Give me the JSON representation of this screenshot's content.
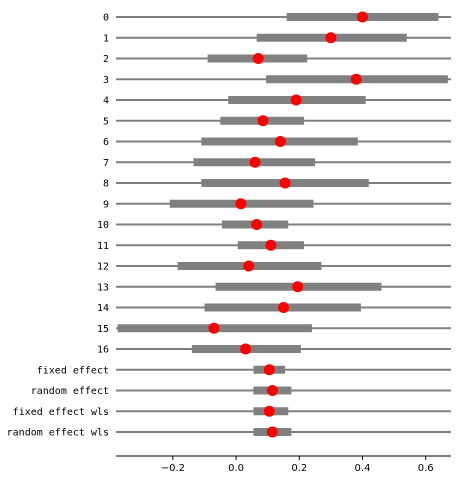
{
  "chart_data": {
    "type": "forest",
    "title": "",
    "xlabel": "",
    "ylabel": "",
    "xlim": [
      -0.38,
      0.68
    ],
    "xticks": [
      -0.2,
      0.0,
      0.2,
      0.4,
      0.6
    ],
    "xtick_labels": [
      "−0.2",
      "0.0",
      "0.2",
      "0.4",
      "0.6"
    ],
    "grid": false,
    "rows": [
      {
        "label": "0",
        "estimate": 0.4,
        "ci_low": 0.16,
        "ci_high": 0.64
      },
      {
        "label": "1",
        "estimate": 0.3,
        "ci_low": 0.065,
        "ci_high": 0.54
      },
      {
        "label": "2",
        "estimate": 0.07,
        "ci_low": -0.09,
        "ci_high": 0.225
      },
      {
        "label": "3",
        "estimate": 0.38,
        "ci_low": 0.095,
        "ci_high": 0.67
      },
      {
        "label": "4",
        "estimate": 0.19,
        "ci_low": -0.025,
        "ci_high": 0.41
      },
      {
        "label": "5",
        "estimate": 0.085,
        "ci_low": -0.05,
        "ci_high": 0.215
      },
      {
        "label": "6",
        "estimate": 0.14,
        "ci_low": -0.11,
        "ci_high": 0.385
      },
      {
        "label": "7",
        "estimate": 0.06,
        "ci_low": -0.135,
        "ci_high": 0.25
      },
      {
        "label": "8",
        "estimate": 0.155,
        "ci_low": -0.11,
        "ci_high": 0.42
      },
      {
        "label": "9",
        "estimate": 0.015,
        "ci_low": -0.21,
        "ci_high": 0.245
      },
      {
        "label": "10",
        "estimate": 0.065,
        "ci_low": -0.045,
        "ci_high": 0.165
      },
      {
        "label": "11",
        "estimate": 0.11,
        "ci_low": 0.005,
        "ci_high": 0.215
      },
      {
        "label": "12",
        "estimate": 0.04,
        "ci_low": -0.185,
        "ci_high": 0.27
      },
      {
        "label": "13",
        "estimate": 0.195,
        "ci_low": -0.065,
        "ci_high": 0.46
      },
      {
        "label": "14",
        "estimate": 0.15,
        "ci_low": -0.1,
        "ci_high": 0.395
      },
      {
        "label": "15",
        "estimate": -0.07,
        "ci_low": -0.375,
        "ci_high": 0.24
      },
      {
        "label": "16",
        "estimate": 0.03,
        "ci_low": -0.14,
        "ci_high": 0.205
      },
      {
        "label": "fixed effect",
        "estimate": 0.105,
        "ci_low": 0.055,
        "ci_high": 0.155
      },
      {
        "label": "random effect",
        "estimate": 0.115,
        "ci_low": 0.055,
        "ci_high": 0.175
      },
      {
        "label": "fixed effect wls",
        "estimate": 0.105,
        "ci_low": 0.055,
        "ci_high": 0.165
      },
      {
        "label": "random effect wls",
        "estimate": 0.115,
        "ci_low": 0.055,
        "ci_high": 0.175
      }
    ]
  },
  "colors": {
    "ci_bar": "#808080",
    "row_line": "#808080",
    "point": "#ff0000",
    "axis": "#000000"
  }
}
